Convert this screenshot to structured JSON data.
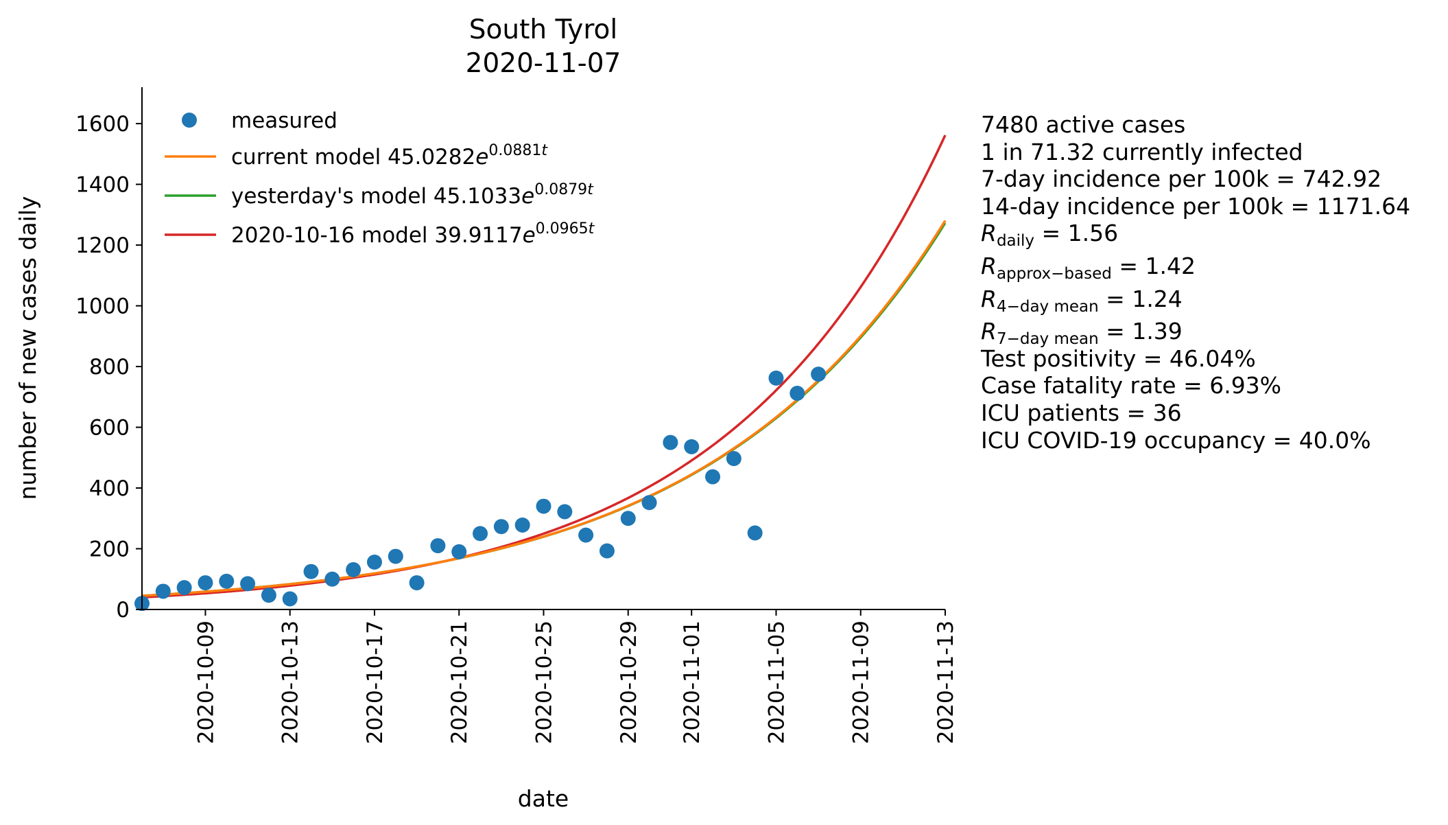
{
  "chart_data": {
    "type": "line",
    "title": "South Tyrol",
    "subtitle": "2020-11-07",
    "xlabel": "date",
    "ylabel": "number of new cases daily",
    "xlim": [
      "2020-10-06",
      "2020-11-13"
    ],
    "ylim": [
      0,
      1720
    ],
    "x_ticks": [
      "2020-10-09",
      "2020-10-13",
      "2020-10-17",
      "2020-10-21",
      "2020-10-25",
      "2020-10-29",
      "2020-11-01",
      "2020-11-05",
      "2020-11-09",
      "2020-11-13"
    ],
    "y_ticks": [
      0,
      200,
      400,
      600,
      800,
      1000,
      1200,
      1400,
      1600
    ],
    "grid": false,
    "legend_position": "upper-left",
    "measured": {
      "name": "measured",
      "color": "#1f77b4",
      "points": [
        [
          "2020-10-06",
          20
        ],
        [
          "2020-10-07",
          60
        ],
        [
          "2020-10-08",
          72
        ],
        [
          "2020-10-09",
          88
        ],
        [
          "2020-10-10",
          93
        ],
        [
          "2020-10-11",
          85
        ],
        [
          "2020-10-12",
          47
        ],
        [
          "2020-10-13",
          35
        ],
        [
          "2020-10-14",
          125
        ],
        [
          "2020-10-15",
          100
        ],
        [
          "2020-10-16",
          131
        ],
        [
          "2020-10-17",
          156
        ],
        [
          "2020-10-18",
          175
        ],
        [
          "2020-10-19",
          88
        ],
        [
          "2020-10-20",
          210
        ],
        [
          "2020-10-21",
          190
        ],
        [
          "2020-10-22",
          250
        ],
        [
          "2020-10-23",
          273
        ],
        [
          "2020-10-24",
          278
        ],
        [
          "2020-10-25",
          340
        ],
        [
          "2020-10-26",
          322
        ],
        [
          "2020-10-27",
          245
        ],
        [
          "2020-10-28",
          193
        ],
        [
          "2020-10-29",
          300
        ],
        [
          "2020-10-30",
          352
        ],
        [
          "2020-10-31",
          550
        ],
        [
          "2020-11-01",
          536
        ],
        [
          "2020-11-02",
          437
        ],
        [
          "2020-11-03",
          497
        ],
        [
          "2020-11-04",
          252
        ],
        [
          "2020-11-05",
          762
        ],
        [
          "2020-11-06",
          712
        ],
        [
          "2020-11-07",
          775
        ]
      ]
    },
    "models": [
      {
        "name_prefix": "current model 45.0282",
        "exponent": "0.0881",
        "color": "#ff7f0e",
        "a": 45.0282,
        "b": 0.0881
      },
      {
        "name_prefix": "yesterday's model 45.1033",
        "exponent": "0.0879",
        "color": "#2ca02c",
        "a": 45.1033,
        "b": 0.0879
      },
      {
        "name_prefix": "2020-10-16 model 39.9117",
        "exponent": "0.0965",
        "color": "#d62728",
        "a": 39.9117,
        "b": 0.0965
      }
    ],
    "model_t_origin": "2020-10-06",
    "draw_order": [
      1,
      2,
      0
    ],
    "model_var": "t"
  },
  "stats": {
    "active": "7480 active cases",
    "infected": "1 in 71.32 currently infected",
    "inc7": "7-day incidence per 100k = 742.92",
    "inc14": "14-day incidence per 100k = 1171.64",
    "r_daily_sym": "R",
    "r_daily_sub": "daily",
    "r_daily_val": " = 1.56",
    "r_approx_sym": "R",
    "r_approx_sub": "approx−based",
    "r_approx_val": " = 1.42",
    "r_4_sym": "R",
    "r_4_sub": "4−day mean",
    "r_4_val": " = 1.24",
    "r_7_sym": "R",
    "r_7_sub": "7−day mean",
    "r_7_val": " = 1.39",
    "positivity": "Test positivity = 46.04%",
    "cfr": "Case fatality rate = 6.93%",
    "icu": "ICU patients = 36",
    "icu_occ": "ICU COVID-19 occupancy = 40.0%"
  }
}
